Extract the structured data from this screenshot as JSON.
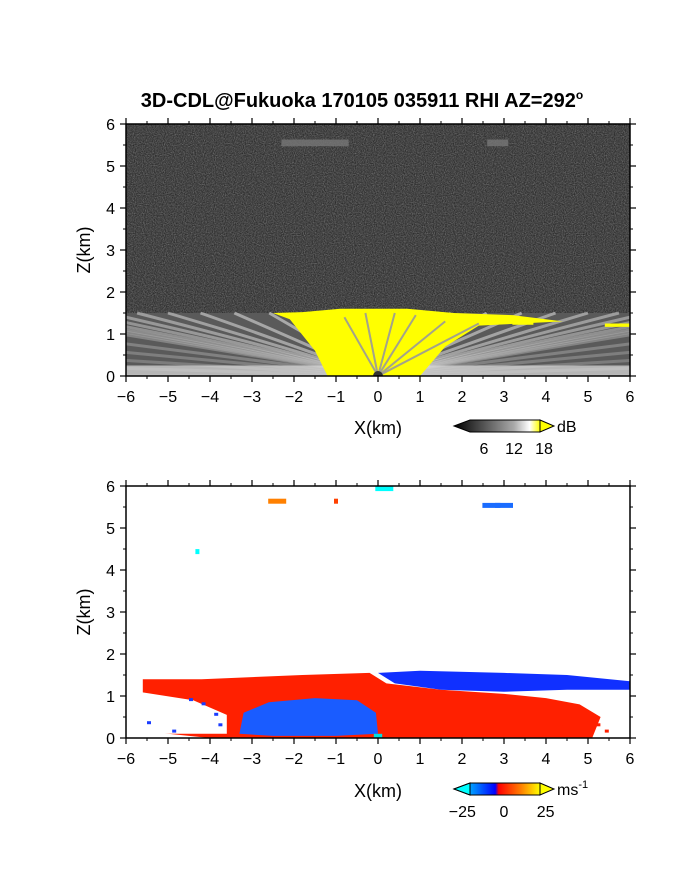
{
  "title": "3D-CDL@Fukuoka 170105 035911 RHI AZ=292",
  "title_superscript": "o",
  "chart_data": [
    {
      "type": "heatmap",
      "variable": "backscatter intensity",
      "xlabel": "X(km)",
      "ylabel": "Z(km)",
      "xlim": [
        -6,
        6
      ],
      "ylim": [
        0,
        6
      ],
      "xticks": [
        "-6",
        "-5",
        "-4",
        "-3",
        "-2",
        "-1",
        "0",
        "1",
        "2",
        "3",
        "4",
        "5",
        "6"
      ],
      "yticks": [
        "0",
        "1",
        "2",
        "3",
        "4",
        "5",
        "6"
      ],
      "colorbar": {
        "unit": "dB",
        "ticks": [
          "6",
          "12",
          "18"
        ],
        "tick_values": [
          6,
          12,
          18
        ],
        "range": [
          0,
          20
        ],
        "colors": [
          "#000000",
          "#555555",
          "#aaaaaa",
          "#ffffff",
          "#ffff00"
        ]
      },
      "features": {
        "boundary_layer_top_km": 1.5,
        "saturated_core_x_km": [
          -1.2,
          1.0
        ],
        "saturated_core_top_km": 1.6,
        "upper_echo": [
          {
            "x": [
              -2.3,
              -0.7
            ],
            "z": 5.55
          },
          {
            "x": [
              2.6,
              3.1
            ],
            "z": 5.55
          }
        ]
      }
    },
    {
      "type": "heatmap",
      "variable": "Doppler velocity",
      "xlabel": "X(km)",
      "ylabel": "Z(km)",
      "xlim": [
        -6,
        6
      ],
      "ylim": [
        0,
        6
      ],
      "xticks": [
        "-6",
        "-5",
        "-4",
        "-3",
        "-2",
        "-1",
        "0",
        "1",
        "2",
        "3",
        "4",
        "5",
        "6"
      ],
      "yticks": [
        "0",
        "1",
        "2",
        "3",
        "4",
        "5",
        "6"
      ],
      "colorbar": {
        "unit": "ms",
        "unit_superscript": "-1",
        "ticks": [
          "-25",
          "0",
          "25"
        ],
        "tick_values": [
          -25,
          0,
          25
        ],
        "range": [
          -30,
          30
        ],
        "colors": [
          "#00ffff",
          "#0080ff",
          "#0000ff",
          "#ff0000",
          "#ff8000",
          "#ffff00"
        ]
      },
      "regions": [
        {
          "label": "positive",
          "color": "#ff2000",
          "x": [
            -5.6,
            6.0
          ],
          "z": [
            0.0,
            1.5
          ]
        },
        {
          "label": "negative aloft",
          "color": "#1030ff",
          "x": [
            0.0,
            6.0
          ],
          "z": [
            1.0,
            1.6
          ]
        },
        {
          "label": "negative low",
          "color": "#1a5cff",
          "x": [
            -3.3,
            0.0
          ],
          "z": [
            0.0,
            0.95
          ]
        },
        {
          "label": "near-zero",
          "color": "#00e0e0",
          "x": [
            -0.1,
            0.1
          ],
          "z": [
            0.0,
            0.1
          ]
        }
      ],
      "sparse_echoes": [
        {
          "x": -2.4,
          "z": 5.65,
          "value": 18
        },
        {
          "x": -1.0,
          "z": 5.65,
          "value": 12
        },
        {
          "x": 2.7,
          "z": 5.55,
          "value": -18
        },
        {
          "x": 3.0,
          "z": 5.55,
          "value": -20
        },
        {
          "x": -4.3,
          "z": 4.45,
          "value": -30
        },
        {
          "x": 0.15,
          "z": 5.95,
          "value": -28
        }
      ]
    }
  ]
}
